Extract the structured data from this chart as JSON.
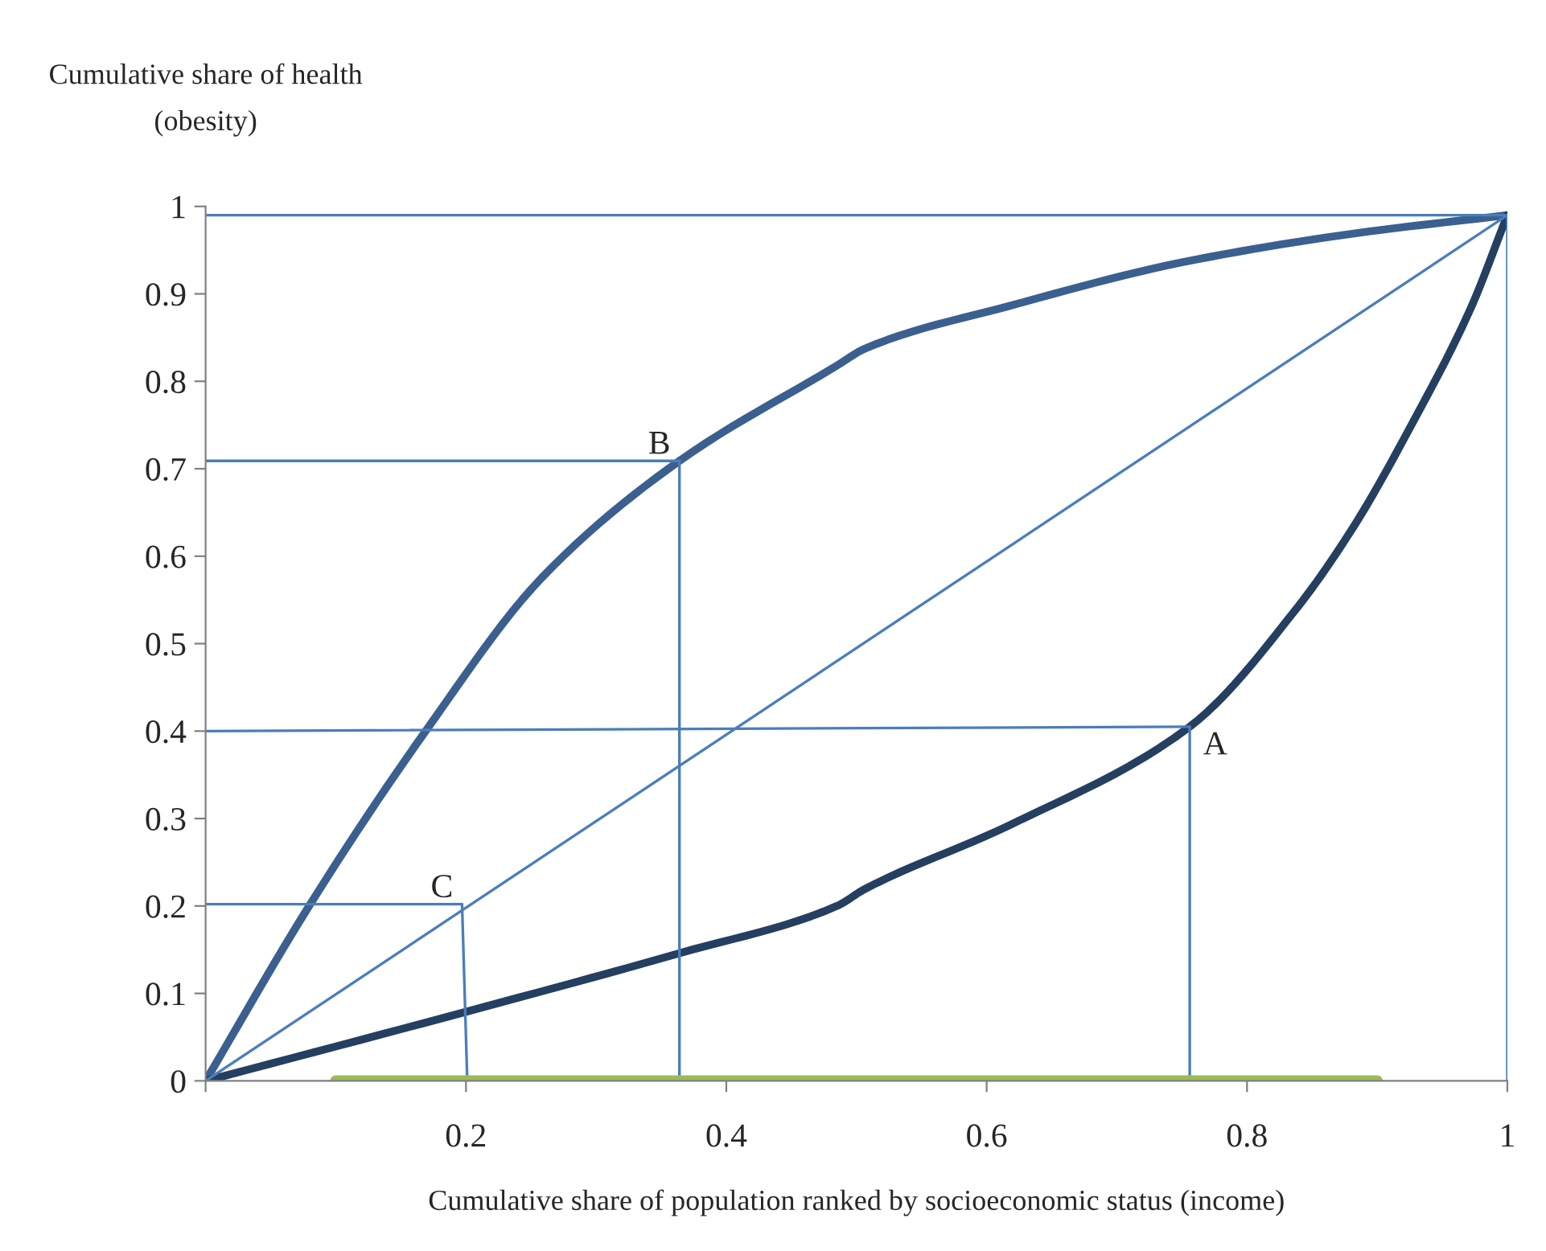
{
  "chart_data": {
    "type": "line",
    "xlabel": "Cumulative share of population ranked by socioeconomic status (income)",
    "ylabel": "Cumulative share of health\n(obesity)",
    "series": [
      {
        "color": "#3b5f8f",
        "x": [
          0,
          0.0795,
          0.169,
          0.258,
          0.364,
          0.485,
          0.506,
          0.617,
          0.75,
          0.882,
          1.0
        ],
        "values": [
          0,
          0.2,
          0.4,
          0.575,
          0.709,
          0.818,
          0.837,
          0.886,
          0.936,
          0.969,
          0.99
        ]
      },
      {
        "color": "#243f60",
        "x": [
          0,
          0.2,
          0.364,
          0.485,
          0.506,
          0.617,
          0.756,
          0.839,
          0.882,
          0.927,
          0.972,
          1.0
        ],
        "values": [
          0,
          0.079,
          0.146,
          0.2,
          0.219,
          0.292,
          0.405,
          0.542,
          0.634,
          0.752,
          0.884,
          0.99
        ]
      },
      {
        "color": "#4a7ebb",
        "x": [
          0,
          1.0
        ],
        "values": [
          0,
          0.99
        ]
      },
      {
        "color": "#4a7ebb",
        "x": [
          0,
          1.0
        ],
        "values": [
          0.99,
          0.99
        ]
      },
      {
        "color": "#4a7ebb",
        "x": [
          1.0,
          1.0
        ],
        "values": [
          0.99,
          0
        ]
      },
      {
        "color": "#4a7ebb",
        "x": [
          0,
          0.364
        ],
        "values": [
          0.709,
          0.709
        ]
      },
      {
        "color": "#4a7ebb",
        "x": [
          0.364,
          0.364
        ],
        "values": [
          0.709,
          0
        ]
      },
      {
        "color": "#4a7ebb",
        "x": [
          0,
          0.756
        ],
        "values": [
          0.4,
          0.405
        ]
      },
      {
        "color": "#4a7ebb",
        "x": [
          0.756,
          0.756
        ],
        "values": [
          0.405,
          0
        ]
      },
      {
        "color": "#4a7ebb",
        "x": [
          0,
          0.197
        ],
        "values": [
          0.202,
          0.202
        ]
      },
      {
        "color": "#4a7ebb",
        "x": [
          0.197,
          0.201
        ],
        "values": [
          0.202,
          0
        ]
      },
      {
        "color": "#9bbb59",
        "x": [
          0.1,
          0.9
        ],
        "values": [
          0,
          0
        ]
      }
    ],
    "annotations": [
      {
        "text": "A",
        "x": 0.756,
        "y": 0.405
      },
      {
        "text": "B",
        "x": 0.364,
        "y": 0.709
      },
      {
        "text": "C",
        "x": 0.197,
        "y": 0.202
      }
    ],
    "xlim": [
      0,
      1
    ],
    "ylim": [
      0,
      1
    ],
    "xticks": [
      {
        "value": 0,
        "label": null
      },
      0.2,
      0.4,
      0.6,
      0.8,
      1
    ],
    "yticks": [
      0,
      0.1,
      0.2,
      0.3,
      0.4,
      0.5,
      0.6,
      0.7,
      0.8,
      0.9,
      1
    ],
    "grid": false,
    "legend": false,
    "marker": "none",
    "line_style": "solid"
  }
}
